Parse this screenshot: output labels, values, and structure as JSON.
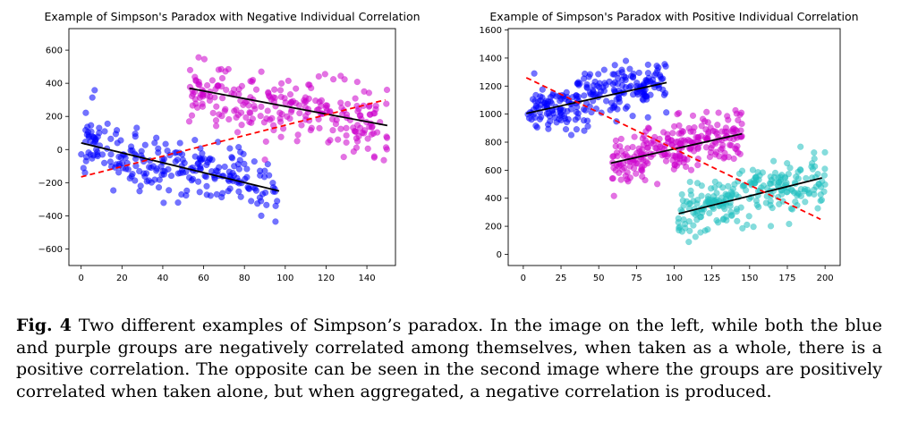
{
  "figure": {
    "label": "Fig. 4",
    "caption": "Two different examples of Simpson’s paradox. In the image on the left, while both the blue and purple groups are negatively correlated among themselves, when taken as a whole, there is a positive correlation. The opposite can be seen in the second image where the groups are positively correlated when taken alone, but when aggregated, a negative correlation is produced."
  },
  "chart_data": [
    {
      "type": "scatter",
      "title": "Example of Simpson's Paradox with Negative Individual Correlation",
      "xlabel": "",
      "ylabel": "",
      "xlim": [
        -6,
        154
      ],
      "ylim": [
        -700,
        730
      ],
      "xticks": [
        0,
        20,
        40,
        60,
        80,
        100,
        120,
        140
      ],
      "yticks": [
        -600,
        -400,
        -200,
        0,
        200,
        400,
        600
      ],
      "series": [
        {
          "color": "#0000ff",
          "n": 250,
          "x_range": [
            0,
            96
          ],
          "trend": [
            [
              0,
              40
            ],
            [
              97,
              -250
            ]
          ],
          "spread": 95,
          "seed": 11
        },
        {
          "color": "#cc00cc",
          "n": 250,
          "x_range": [
            52,
            150
          ],
          "trend": [
            [
              53,
              370
            ],
            [
              150,
              145
            ]
          ],
          "spread": 95,
          "seed": 23
        }
      ],
      "lines": [
        {
          "style": "solid",
          "color": "#000000",
          "points": [
            [
              0,
              40
            ],
            [
              97,
              -250
            ]
          ]
        },
        {
          "style": "solid",
          "color": "#000000",
          "points": [
            [
              53,
              370
            ],
            [
              150,
              145
            ]
          ]
        },
        {
          "style": "dashed",
          "color": "#ff0000",
          "points": [
            [
              0,
              -165
            ],
            [
              149,
              300
            ]
          ]
        }
      ]
    },
    {
      "type": "scatter",
      "title": "Example of Simpson's Paradox with Positive Individual Correlation",
      "xlabel": "",
      "ylabel": "",
      "xlim": [
        -10,
        210
      ],
      "ylim": [
        -80,
        1610
      ],
      "xticks": [
        0,
        25,
        50,
        75,
        100,
        125,
        150,
        175,
        200
      ],
      "yticks": [
        0,
        200,
        400,
        600,
        800,
        1000,
        1200,
        1400,
        1600
      ],
      "series": [
        {
          "color": "#0000ff",
          "n": 250,
          "x_range": [
            2,
            95
          ],
          "trend": [
            [
              2,
              1005
            ],
            [
              95,
              1225
            ]
          ],
          "spread": 90,
          "seed": 37
        },
        {
          "color": "#cc00cc",
          "n": 250,
          "x_range": [
            58,
            145
          ],
          "trend": [
            [
              58,
              650
            ],
            [
              145,
              860
            ]
          ],
          "spread": 95,
          "seed": 41
        },
        {
          "color": "#20c0c0",
          "n": 250,
          "x_range": [
            102,
            200
          ],
          "trend": [
            [
              103,
              290
            ],
            [
              198,
              545
            ]
          ],
          "spread": 95,
          "seed": 53
        }
      ],
      "lines": [
        {
          "style": "solid",
          "color": "#000000",
          "points": [
            [
              2,
              1005
            ],
            [
              95,
              1225
            ]
          ]
        },
        {
          "style": "solid",
          "color": "#000000",
          "points": [
            [
              58,
              650
            ],
            [
              145,
              860
            ]
          ]
        },
        {
          "style": "solid",
          "color": "#000000",
          "points": [
            [
              103,
              290
            ],
            [
              198,
              545
            ]
          ]
        },
        {
          "style": "dashed",
          "color": "#ff0000",
          "points": [
            [
              2,
              1260
            ],
            [
              197,
              250
            ]
          ]
        }
      ]
    }
  ]
}
